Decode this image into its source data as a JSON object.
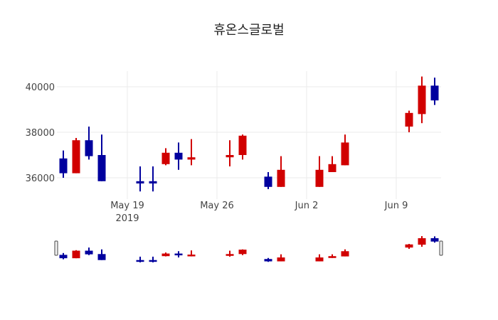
{
  "chart_data": {
    "type": "candlestick",
    "title": "휴온스글로벌",
    "xlabel": "",
    "ylabel": "",
    "x_ticks": [
      "May 19\n2019",
      "May 26",
      "Jun 2",
      "Jun 9"
    ],
    "y_ticks": [
      36000,
      38000,
      40000
    ],
    "ylim": [
      35250,
      40800
    ],
    "grid": true,
    "legend": false,
    "rangeslider": true,
    "colors": {
      "increasing": "#d10000",
      "decreasing": "#00009e"
    },
    "candles": [
      {
        "date": "2019-05-14",
        "open": 36850,
        "high": 37200,
        "low": 36000,
        "close": 36200
      },
      {
        "date": "2019-05-15",
        "open": 36200,
        "high": 37750,
        "low": 36200,
        "close": 37650
      },
      {
        "date": "2019-05-16",
        "open": 37650,
        "high": 38250,
        "low": 36800,
        "close": 36950
      },
      {
        "date": "2019-05-17",
        "open": 37000,
        "high": 37900,
        "low": 35850,
        "close": 35850
      },
      {
        "date": "2019-05-20",
        "open": 35850,
        "high": 36500,
        "low": 35400,
        "close": 35750
      },
      {
        "date": "2019-05-21",
        "open": 35850,
        "high": 36500,
        "low": 35400,
        "close": 35750
      },
      {
        "date": "2019-05-22",
        "open": 36600,
        "high": 37300,
        "low": 36550,
        "close": 37100
      },
      {
        "date": "2019-05-23",
        "open": 37100,
        "high": 37550,
        "low": 36350,
        "close": 36800
      },
      {
        "date": "2019-05-24",
        "open": 36800,
        "high": 37700,
        "low": 36550,
        "close": 36900
      },
      {
        "date": "2019-05-27",
        "open": 36900,
        "high": 37650,
        "low": 36500,
        "close": 37000
      },
      {
        "date": "2019-05-28",
        "open": 37000,
        "high": 37900,
        "low": 36800,
        "close": 37850
      },
      {
        "date": "2019-05-30",
        "open": 36050,
        "high": 36250,
        "low": 35500,
        "close": 35600
      },
      {
        "date": "2019-05-31",
        "open": 35600,
        "high": 36950,
        "low": 35600,
        "close": 36350
      },
      {
        "date": "2019-06-03",
        "open": 35600,
        "high": 36950,
        "low": 35600,
        "close": 36350
      },
      {
        "date": "2019-06-04",
        "open": 36250,
        "high": 36950,
        "low": 36250,
        "close": 36600
      },
      {
        "date": "2019-06-05",
        "open": 36550,
        "high": 37900,
        "low": 36550,
        "close": 37550
      },
      {
        "date": "2019-06-10",
        "open": 38250,
        "high": 38950,
        "low": 38000,
        "close": 38850
      },
      {
        "date": "2019-06-11",
        "open": 38800,
        "high": 40450,
        "low": 38400,
        "close": 40050
      },
      {
        "date": "2019-06-12",
        "open": 40050,
        "high": 40400,
        "low": 39200,
        "close": 39400
      }
    ]
  }
}
